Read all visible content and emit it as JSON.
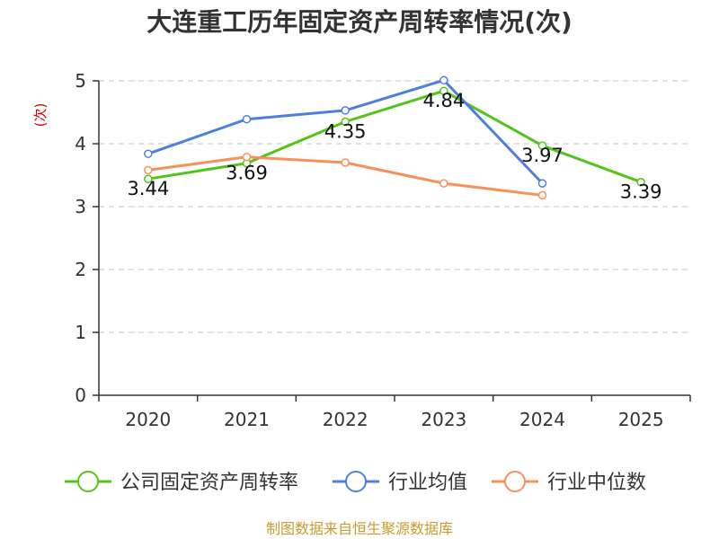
{
  "chart_data": {
    "type": "line",
    "title": "大连重工历年固定资产周转率情况(次)",
    "ylabel": "(次)",
    "xlabel": "",
    "categories": [
      "2020",
      "2021",
      "2022",
      "2023",
      "2024",
      "2025"
    ],
    "ylim": [
      0,
      5
    ],
    "yticks": [
      0,
      1,
      2,
      3,
      4,
      5
    ],
    "grid": true,
    "legend_position": "bottom",
    "series": [
      {
        "name": "公司固定资产周转率",
        "color": "#52c41a",
        "values": [
          3.44,
          3.69,
          4.35,
          4.84,
          3.97,
          3.39
        ],
        "data_labels": [
          "3.44",
          "3.69",
          "4.35",
          "4.84",
          "3.97",
          "3.39"
        ]
      },
      {
        "name": "行业均值",
        "color": "#4f7fdc",
        "values": [
          3.84,
          4.39,
          4.53,
          5.01,
          3.37,
          null
        ]
      },
      {
        "name": "行业中位数",
        "color": "#f6915a",
        "values": [
          3.58,
          3.79,
          3.7,
          3.37,
          3.18,
          null
        ]
      }
    ]
  },
  "source": "制图数据来自恒生聚源数据库"
}
